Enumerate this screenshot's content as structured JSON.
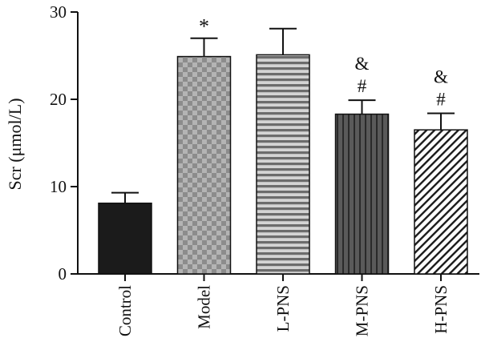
{
  "chart_data": {
    "type": "bar",
    "ylabel": "Scr (μmol/L)",
    "ylim": [
      0,
      30
    ],
    "yticks": [
      0,
      10,
      20,
      30
    ],
    "grid": false,
    "categories": [
      "Control",
      "Model",
      "L-PNS",
      "M-PNS",
      "H-PNS"
    ],
    "values": [
      8.1,
      24.9,
      25.1,
      18.3,
      16.5
    ],
    "errors": [
      1.2,
      2.1,
      3.0,
      1.6,
      1.9
    ],
    "annotations": [
      [],
      [
        "*"
      ],
      [],
      [
        "&",
        "#"
      ],
      [
        "&",
        "#"
      ]
    ],
    "bar_fills": [
      "solid-black",
      "checker-gray",
      "horizontal-stripes",
      "vertical-stripes",
      "diagonal-hatch"
    ]
  }
}
